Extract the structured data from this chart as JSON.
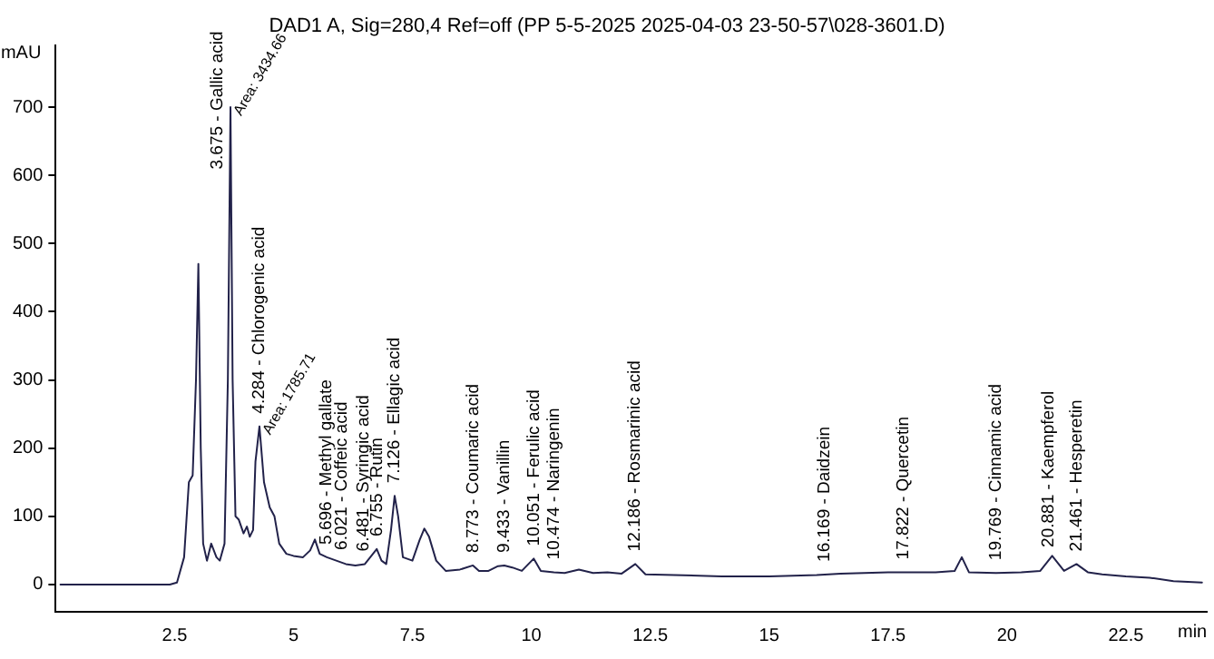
{
  "chart_data": {
    "type": "line",
    "title": "DAD1 A, Sig=280,4 Ref=off (PP 5-5-2025 2025-04-03 23-50-57\\028-3601.D)",
    "xlabel": "min",
    "ylabel": "mAU",
    "xlim": [
      0,
      24.2
    ],
    "ylim": [
      -40,
      790
    ],
    "xticks": [
      2.5,
      5,
      7.5,
      10,
      12.5,
      15,
      17.5,
      20,
      22.5
    ],
    "yticks": [
      0,
      100,
      200,
      300,
      400,
      500,
      600,
      700
    ],
    "grid": false,
    "legend": false,
    "marker": "none",
    "line_style": "solid",
    "series": [
      {
        "color": "#22224a",
        "x": [
          0.1,
          2.4,
          2.55,
          2.7,
          2.8,
          2.88,
          2.95,
          3.0,
          3.05,
          3.1,
          3.18,
          3.27,
          3.38,
          3.45,
          3.55,
          3.62,
          3.675,
          3.72,
          3.78,
          3.85,
          3.95,
          4.02,
          4.08,
          4.15,
          4.2,
          4.284,
          4.38,
          4.5,
          4.6,
          4.7,
          4.85,
          5.0,
          5.2,
          5.35,
          5.45,
          5.55,
          5.7,
          5.9,
          6.1,
          6.3,
          6.5,
          6.75,
          6.85,
          6.95,
          7.05,
          7.126,
          7.2,
          7.3,
          7.5,
          7.65,
          7.75,
          7.85,
          8.0,
          8.2,
          8.5,
          8.773,
          8.9,
          9.1,
          9.3,
          9.433,
          9.6,
          9.8,
          10.051,
          10.2,
          10.474,
          10.7,
          11.0,
          11.3,
          11.6,
          11.9,
          12.186,
          12.4,
          13.0,
          14.0,
          15.0,
          16.0,
          16.5,
          17.0,
          17.5,
          18.0,
          18.5,
          18.9,
          19.05,
          19.2,
          19.769,
          20.3,
          20.7,
          20.95,
          21.2,
          21.461,
          21.7,
          22.0,
          22.5,
          23.0,
          23.5,
          24.1
        ],
        "values": [
          0,
          0,
          3,
          40,
          150,
          160,
          300,
          470,
          200,
          60,
          35,
          60,
          40,
          35,
          60,
          300,
          700,
          300,
          100,
          95,
          75,
          85,
          70,
          80,
          180,
          232,
          150,
          113,
          100,
          60,
          45,
          42,
          40,
          50,
          66,
          45,
          40,
          35,
          30,
          28,
          30,
          52,
          35,
          30,
          80,
          130,
          100,
          40,
          35,
          65,
          82,
          70,
          35,
          20,
          22,
          28,
          20,
          20,
          27,
          28,
          25,
          20,
          38,
          20,
          18,
          17,
          22,
          17,
          18,
          16,
          30,
          15,
          14,
          12,
          12,
          14,
          16,
          17,
          18,
          18,
          18,
          20,
          40,
          18,
          17,
          18,
          20,
          42,
          20,
          30,
          18,
          15,
          12,
          10,
          5,
          3
        ]
      }
    ],
    "annotations": [
      {
        "text": "3.675 - Gallic acid",
        "x": 3.675,
        "y": 700
      },
      {
        "text": "Area: 3434.66",
        "x": 3.675,
        "y": 700
      },
      {
        "text": "4.284 - Chlorogenic acid",
        "x": 4.284,
        "y": 232
      },
      {
        "text": "Area: 1785.71",
        "x": 4.284,
        "y": 232
      },
      {
        "text": "5.696 - Methyl gallate",
        "x": 5.696,
        "y": 40
      },
      {
        "text": "6.021 - Coffeic acid",
        "x": 6.021,
        "y": 32
      },
      {
        "text": "6.481 - Syringic acid",
        "x": 6.481,
        "y": 30
      },
      {
        "text": "6.755 - Rutin",
        "x": 6.755,
        "y": 52
      },
      {
        "text": "7.126 - Ellagic acid",
        "x": 7.126,
        "y": 130
      },
      {
        "text": "8.773 - Coumaric acid",
        "x": 8.773,
        "y": 28
      },
      {
        "text": "9.433 - Vanillin",
        "x": 9.433,
        "y": 28
      },
      {
        "text": "10.051 - Ferulic acid",
        "x": 10.051,
        "y": 38
      },
      {
        "text": "10.474 - Naringenin",
        "x": 10.474,
        "y": 18
      },
      {
        "text": "12.186 - Rosmarinic acid",
        "x": 12.186,
        "y": 30
      },
      {
        "text": "16.169 - Daidzein",
        "x": 16.169,
        "y": 14.7
      },
      {
        "text": "17.822 - Quercetin",
        "x": 17.822,
        "y": 18
      },
      {
        "text": "19.769 - Cinnamic acid",
        "x": 19.769,
        "y": 17
      },
      {
        "text": "20.881 - Kaempferol",
        "x": 20.881,
        "y": 36
      },
      {
        "text": "21.461 - Hesperetin",
        "x": 21.461,
        "y": 30
      }
    ]
  }
}
